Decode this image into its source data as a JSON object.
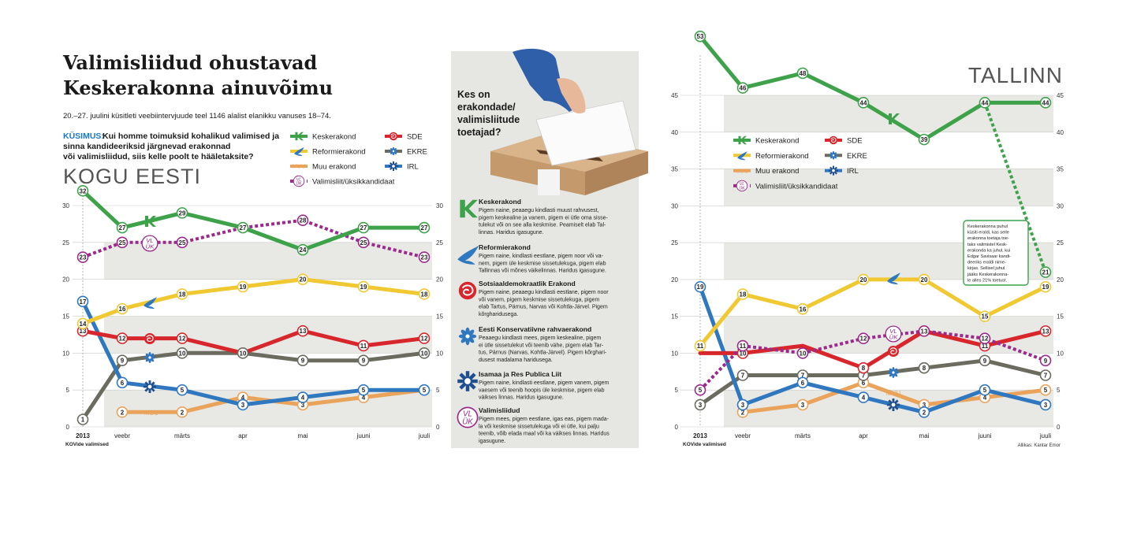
{
  "header": {
    "title_line1": "Valimisliidud ohustavad",
    "title_line2": "Keskerakonna ainuvõimu",
    "subtitle": "20.–27. juulini küsitleti veebiintervjuude teel 1146 alalist elanikku vanuses 18–74.",
    "question_label": "KÜSIMUS:",
    "question_line1": "Kui homme toimuksid kohalikud valimised ja",
    "question_line2": "sinna kandideeriksid järgnevad erakonnad",
    "question_line3": "või valimisliidud, siis kelle poolt te hääletaksite?"
  },
  "legend": {
    "kesk": "Keskerakond",
    "sde": "SDE",
    "reform": "Reformierakond",
    "ekre": "EKRE",
    "muu": "Muu erakond",
    "irl": "IRL",
    "valimisliit": "Valimisliit/üksikkandidaat"
  },
  "colors": {
    "kesk": "#3ea24b",
    "reform": "#f0c832",
    "sde": "#d7262c",
    "ekre": "#6b6b60",
    "muu": "#e9a35a",
    "irl": "#2f78c0",
    "valimisliit": "#9a2a8c",
    "band": "#e8e8e4"
  },
  "middle": {
    "heading_line1": "Kes on",
    "heading_line2": "erakondade/",
    "heading_line3": "valimisliitude",
    "heading_line4": "toetajad?",
    "parties": [
      {
        "name": "Keskerakond",
        "icon": "kesk-icon",
        "lines": [
          "Pigem naine, peaaegu kindlasti muust rahvusest,",
          "pigem keskealine ja vanem, pigem ei ütle oma sisse-",
          "tulekut või on see alla keskmise. Peamiselt elab Tal-",
          "linnas. Haridus igasugune."
        ]
      },
      {
        "name": "Reformierakond",
        "icon": "reform-icon",
        "lines": [
          "Pigem naine, kindlasti eestlane, pigem noor või va-",
          "nem, pigem üle keskmise sissetulekuga, pigem elab",
          "Tallinnas või mõnes väikelinnas. Haridus igasugune."
        ]
      },
      {
        "name": "Sotsiaaldemokraatlik Erakond",
        "icon": "sde-icon",
        "lines": [
          "Pigem naine, peaaegu kindlasti eestlane, pigem noor",
          "või vanem, pigem keskmise sissetulekuga, pigem",
          "elab Tartus, Pärnus, Narvas või Kohtla-Järvel. Pigem",
          "kõrgharidusega."
        ]
      },
      {
        "name": "Eesti Konservatiivne rahvaerakond",
        "icon": "ekre-icon",
        "lines": [
          "Peaaegu kindlasti mees, pigem keskealine, pigem",
          "ei ütle sissetulekut või teenib vähe, pigem elab Tar-",
          "tus, Pärnus (Narvas, Kohtla-Järvel). Pigem kõrghari-",
          "dusest madalama haridusega."
        ]
      },
      {
        "name": "Isamaa ja Res Publica Liit",
        "icon": "irl-icon",
        "lines": [
          "Pigem naine, kindlasti eestlane, pigem vanem, pigem",
          "vaesem või teenib hoopis üle keskmise, pigem elab",
          "väikses linnas. Haridus igasugune."
        ]
      },
      {
        "name": "Valimisliidud",
        "icon": "valimisliit-icon",
        "lines": [
          "Pigem mees, pigem eestlane, igas eas, pigem mada-",
          "la või keskmise sissetulekuga või ei ütle, kui palju",
          "teenib, võib elada maal või ka väikses linnas. Haridus",
          "igasugune."
        ]
      }
    ]
  },
  "tallinn_note": [
    "Keskerakonna puhul",
    "küsiti eraldi, kas selle",
    "erakonna toetaja toe-",
    "taks valimistel Kesk-",
    "erakonda ka juhul, kui",
    "Edgar Savisaar kandi-",
    "deeriks eraldi nime-",
    "kirjas. Sellisel juhul",
    "jääks Keskerakonna-",
    "le alles 21% toetust."
  ],
  "source": "Allikas: Kantar Emor",
  "chart_data": [
    {
      "type": "line",
      "title": "KOGU EESTI",
      "categories": [
        "2013",
        "veebr",
        "märts",
        "apr",
        "mai",
        "juuni",
        "juuli"
      ],
      "first_category_sublabel": "KOVide valimised",
      "ylim": [
        0,
        30
      ],
      "yticks": [
        0,
        5,
        10,
        15,
        20,
        25,
        30
      ],
      "grid": true,
      "legend_position": "top-right",
      "series": [
        {
          "key": "kesk",
          "name": "Keskerakond",
          "x": [
            0,
            1,
            2,
            3,
            4,
            5,
            6
          ],
          "values": [
            32,
            27,
            29,
            27,
            24,
            27,
            27
          ],
          "marker_indices": [
            0,
            1,
            2,
            3,
            4,
            5,
            6
          ],
          "style": "solid"
        },
        {
          "key": "valimisliit",
          "name": "Valimisliit/üksikkandidaat",
          "x": [
            0,
            1,
            2,
            3,
            4,
            5,
            6
          ],
          "values": [
            23,
            25,
            25,
            27,
            28,
            25,
            23
          ],
          "marker_indices": [
            0,
            1,
            2,
            4,
            5,
            6
          ],
          "style": "dotted"
        },
        {
          "key": "reform",
          "name": "Reformierakond",
          "x": [
            0,
            1,
            2,
            3,
            4,
            5,
            6
          ],
          "values": [
            14,
            16,
            18,
            19,
            20,
            19,
            18
          ],
          "marker_indices": [
            0,
            1,
            2,
            3,
            4,
            5,
            6
          ],
          "style": "solid"
        },
        {
          "key": "sde",
          "name": "SDE",
          "x": [
            0,
            1,
            2,
            3,
            4,
            5,
            6
          ],
          "values": [
            13,
            12,
            12,
            10,
            13,
            11,
            12
          ],
          "marker_indices": [
            0,
            1,
            2,
            4,
            5,
            6
          ],
          "style": "solid"
        },
        {
          "key": "ekre",
          "name": "EKRE",
          "x": [
            0,
            1,
            2,
            3,
            4,
            5,
            6
          ],
          "values": [
            1,
            9,
            10,
            10,
            9,
            9,
            10
          ],
          "marker_indices": [
            0,
            1,
            2,
            3,
            4,
            5,
            6
          ],
          "style": "solid"
        },
        {
          "key": "irl",
          "name": "IRL",
          "x": [
            0,
            1,
            2,
            3,
            4,
            5,
            6
          ],
          "values": [
            17,
            6,
            5,
            3,
            4,
            5,
            5
          ],
          "marker_indices": [
            0,
            1,
            2,
            3,
            4,
            5,
            6
          ],
          "style": "solid"
        },
        {
          "key": "muu",
          "name": "Muu erakond",
          "x": [
            1,
            2,
            3,
            4,
            5,
            6
          ],
          "values": [
            2,
            2,
            4,
            3,
            4,
            5
          ],
          "marker_indices": [
            0,
            1,
            2,
            3,
            4
          ],
          "style": "solid"
        }
      ]
    },
    {
      "type": "line",
      "title": "TALLINN",
      "categories": [
        "2013",
        "veebr",
        "märts",
        "apr",
        "mai",
        "juuni",
        "juuli"
      ],
      "first_category_sublabel": "KOVide valimised",
      "ylim": [
        0,
        45
      ],
      "yticks": [
        0,
        5,
        10,
        15,
        20,
        25,
        30,
        35,
        40,
        45
      ],
      "grid": true,
      "legend_position": "top-left",
      "series": [
        {
          "key": "kesk",
          "name": "Keskerakond",
          "x": [
            0,
            1,
            2,
            3,
            4,
            5,
            6
          ],
          "values": [
            53,
            46,
            48,
            44,
            39,
            44,
            44
          ],
          "marker_indices": [
            0,
            1,
            2,
            3,
            4,
            5,
            6
          ],
          "style": "solid"
        },
        {
          "key": "kesk",
          "name": "",
          "x": [
            5,
            6
          ],
          "values": [
            44,
            21
          ],
          "marker_indices": [
            1
          ],
          "style": "dotted"
        },
        {
          "key": "reform",
          "name": "Reformierakond",
          "x": [
            0,
            1,
            2,
            3,
            4,
            5,
            6
          ],
          "values": [
            11,
            18,
            16,
            20,
            20,
            15,
            19
          ],
          "marker_indices": [
            0,
            1,
            2,
            3,
            4,
            5,
            6
          ],
          "style": "solid"
        },
        {
          "key": "sde",
          "name": "SDE",
          "x": [
            0,
            1,
            2,
            3,
            4,
            5,
            6
          ],
          "values": [
            10,
            10,
            11,
            8,
            13,
            11,
            13
          ],
          "marker_indices": [
            1,
            3,
            4,
            5,
            6
          ],
          "style": "solid"
        },
        {
          "key": "valimisliit",
          "name": "Valimisliit/üksikkandidaat",
          "x": [
            0,
            1,
            2,
            3,
            4,
            5,
            6
          ],
          "values": [
            5,
            11,
            10,
            12,
            13,
            12,
            9
          ],
          "marker_indices": [
            0,
            1,
            2,
            3,
            4,
            5,
            6
          ],
          "style": "dotted"
        },
        {
          "key": "ekre",
          "name": "EKRE",
          "x": [
            0,
            1,
            2,
            3,
            4,
            5,
            6
          ],
          "values": [
            3,
            7,
            7,
            7,
            8,
            9,
            7
          ],
          "marker_indices": [
            0,
            1,
            2,
            3,
            4,
            5,
            6
          ],
          "style": "solid"
        },
        {
          "key": "irl",
          "name": "IRL",
          "x": [
            0,
            1,
            2,
            3,
            4,
            5,
            6
          ],
          "values": [
            19,
            3,
            6,
            4,
            2,
            5,
            3
          ],
          "marker_indices": [
            0,
            1,
            2,
            3,
            4,
            5,
            6
          ],
          "style": "solid"
        },
        {
          "key": "muu",
          "name": "Muu erakond",
          "x": [
            1,
            2,
            3,
            4,
            5,
            6
          ],
          "values": [
            2,
            3,
            6,
            3,
            4,
            5
          ],
          "marker_indices": [
            0,
            1,
            2,
            3,
            4,
            5
          ],
          "style": "solid"
        }
      ]
    }
  ]
}
